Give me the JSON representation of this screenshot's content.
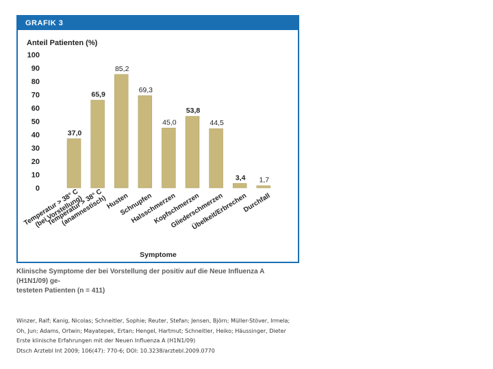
{
  "figure": {
    "header": "GRAFIK 3",
    "colors": {
      "bar": "#c8b87c",
      "bar_stroke": "#b0a067",
      "header": "#1a6fb3",
      "text": "#222222"
    }
  },
  "chart_data": {
    "type": "bar",
    "title": "Anteil Patienten (%)",
    "xlabel": "Symptome",
    "ylabel": "Anteil Patienten (%)",
    "ylim": [
      0,
      100
    ],
    "yticks": [
      0,
      10,
      20,
      30,
      40,
      50,
      60,
      70,
      80,
      90,
      100
    ],
    "grid": false,
    "categories": [
      [
        "Temperatur > 38° C",
        "(bei Vorstellung)"
      ],
      [
        "Temperatur > 38° C",
        "(anamnestisch)"
      ],
      [
        "Husten"
      ],
      [
        "Schnupfen"
      ],
      [
        "Halsschmerzen"
      ],
      [
        "Kopfschmerzen"
      ],
      [
        "Gliederschmerzen"
      ],
      [
        "Übelkeit/Erbrechen"
      ],
      [
        "Durchfall"
      ]
    ],
    "values": [
      37.0,
      65.9,
      85.2,
      69.3,
      45.0,
      53.8,
      44.5,
      3.4,
      1.7
    ],
    "value_labels": [
      "37,0",
      "65,9",
      "85,2",
      "69,3",
      "45,0",
      "53,8",
      "44,5",
      "3,4",
      "1,7"
    ]
  },
  "caption": {
    "line1": "Klinische Symptome der bei Vorstellung der positiv auf die Neue Influenza A (H1N1/09) ge-",
    "line2": "testeten Patienten (n = 411)"
  },
  "citation": {
    "line1": "Winzer, Ralf; Kanig, Nicolas; Schneitler, Sophie; Reuter, Stefan; Jensen, Björn; Müller-Stöver, Irmela;",
    "line2": "Oh, Jun; Adams, Ortwin; Mayatepek, Ertan; Hengel, Hartmut; Schneitler, Heiko; Häussinger, Dieter",
    "line3": "Erste klinische Erfahrungen mit der Neuen Influenza A (H1N1/09)",
    "line4": "Dtsch Arztebl Int 2009; 106(47): 770-6; DOI: 10.3238/arztebl.2009.0770"
  }
}
